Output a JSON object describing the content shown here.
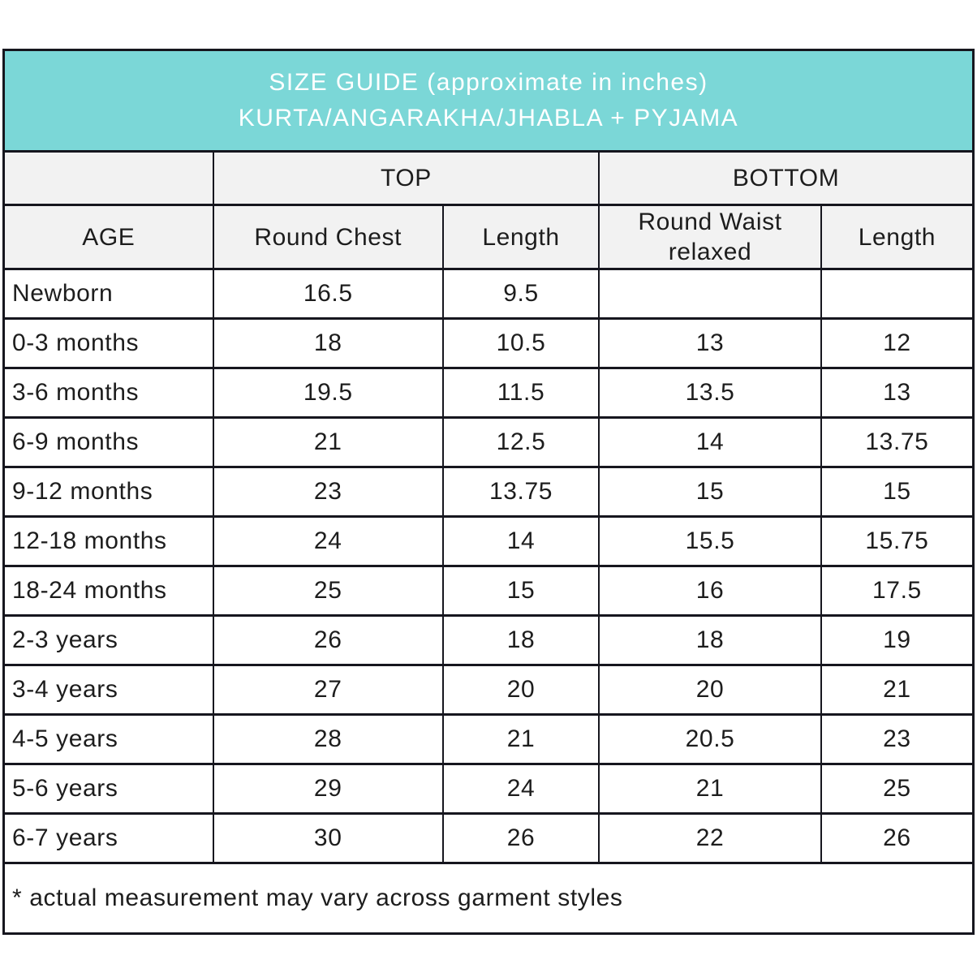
{
  "header": {
    "title_line1": "SIZE GUIDE (approximate in inches)",
    "title_line2": "KURTA/ANGARAKHA/JHABLA + PYJAMA"
  },
  "table": {
    "group_headers": {
      "top": "TOP",
      "bottom": "BOTTOM"
    },
    "columns": [
      "AGE",
      "Round Chest",
      "Length",
      "Round Waist relaxed",
      "Length"
    ],
    "rows": [
      [
        "Newborn",
        "16.5",
        "9.5",
        "",
        ""
      ],
      [
        "0-3 months",
        "18",
        "10.5",
        "13",
        "12"
      ],
      [
        "3-6 months",
        "19.5",
        "11.5",
        "13.5",
        "13"
      ],
      [
        "6-9 months",
        "21",
        "12.5",
        "14",
        "13.75"
      ],
      [
        "9-12 months",
        "23",
        "13.75",
        "15",
        "15"
      ],
      [
        "12-18 months",
        "24",
        "14",
        "15.5",
        "15.75"
      ],
      [
        "18-24 months",
        "25",
        "15",
        "16",
        "17.5"
      ],
      [
        "2-3 years",
        "26",
        "18",
        "18",
        "19"
      ],
      [
        "3-4 years",
        "27",
        "20",
        "20",
        "21"
      ],
      [
        "4-5 years",
        "28",
        "21",
        "20.5",
        "23"
      ],
      [
        "5-6 years",
        "29",
        "24",
        "21",
        "25"
      ],
      [
        "6-7 years",
        "30",
        "26",
        "22",
        "26"
      ]
    ]
  },
  "footnote": "* actual measurement may vary across garment styles",
  "colors": {
    "banner_teal": "#7bd7d7",
    "header_gray": "#f2f2f2",
    "border_dark": "#16161e",
    "text_dark": "#1d1d1d",
    "banner_text": "#ffffff"
  }
}
